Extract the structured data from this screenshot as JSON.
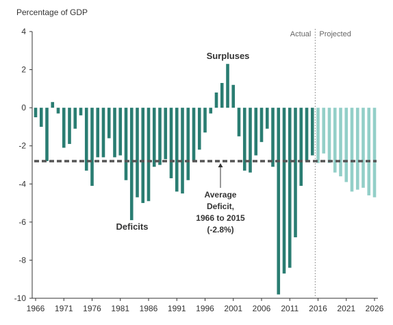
{
  "chart_data": {
    "type": "bar",
    "title": "",
    "ylabel": "Percentage of GDP",
    "xlabel": "",
    "ylim": [
      -10,
      4
    ],
    "yticks": [
      4,
      2,
      0,
      -2,
      -4,
      -6,
      -8,
      -10
    ],
    "xtick_labels": [
      "1966",
      "1971",
      "1976",
      "1981",
      "1986",
      "1991",
      "1996",
      "2001",
      "2006",
      "2011",
      "2016",
      "2021",
      "2026"
    ],
    "grid": false,
    "colors": {
      "actual": "#2a7d72",
      "projected": "#93cfc8",
      "average_line": "#555555",
      "divider": "#999999"
    },
    "section_labels": {
      "actual": "Actual",
      "projected": "Projected"
    },
    "annotations": {
      "surpluses": "Surpluses",
      "deficits": "Deficits",
      "average_lines": [
        "Average",
        "Deficit,",
        "1966 to 2015",
        "(-2.8%)"
      ]
    },
    "average_deficit": -2.8,
    "series": [
      {
        "kind": "actual",
        "x": [
          1966,
          1967,
          1968,
          1969,
          1970,
          1971,
          1972,
          1973,
          1974,
          1975,
          1976,
          1977,
          1978,
          1979,
          1980,
          1981,
          1982,
          1983,
          1984,
          1985,
          1986,
          1987,
          1988,
          1989,
          1990,
          1991,
          1992,
          1993,
          1994,
          1995,
          1996,
          1997,
          1998,
          1999,
          2000,
          2001,
          2002,
          2003,
          2004,
          2005,
          2006,
          2007,
          2008,
          2009,
          2010,
          2011,
          2012,
          2013,
          2014,
          2015
        ],
        "values": [
          -0.5,
          -1.0,
          -2.8,
          0.3,
          -0.3,
          -2.1,
          -1.9,
          -1.1,
          -0.4,
          -3.3,
          -4.1,
          -2.6,
          -2.6,
          -1.6,
          -2.6,
          -2.5,
          -3.8,
          -5.9,
          -4.7,
          -5.0,
          -4.9,
          -3.1,
          -3.0,
          -2.7,
          -3.7,
          -4.4,
          -4.5,
          -3.8,
          -2.8,
          -2.2,
          -1.3,
          -0.3,
          0.8,
          1.3,
          2.3,
          1.2,
          -1.5,
          -3.3,
          -3.4,
          -2.5,
          -1.8,
          -1.1,
          -3.1,
          -9.8,
          -8.7,
          -8.4,
          -6.8,
          -4.1,
          -2.8,
          -2.5
        ]
      },
      {
        "kind": "projected",
        "x": [
          2016,
          2017,
          2018,
          2019,
          2020,
          2021,
          2022,
          2023,
          2024,
          2025,
          2026
        ],
        "values": [
          -2.9,
          -2.4,
          -2.9,
          -3.4,
          -3.6,
          -3.9,
          -4.4,
          -4.3,
          -4.2,
          -4.6,
          -4.7
        ]
      }
    ]
  }
}
